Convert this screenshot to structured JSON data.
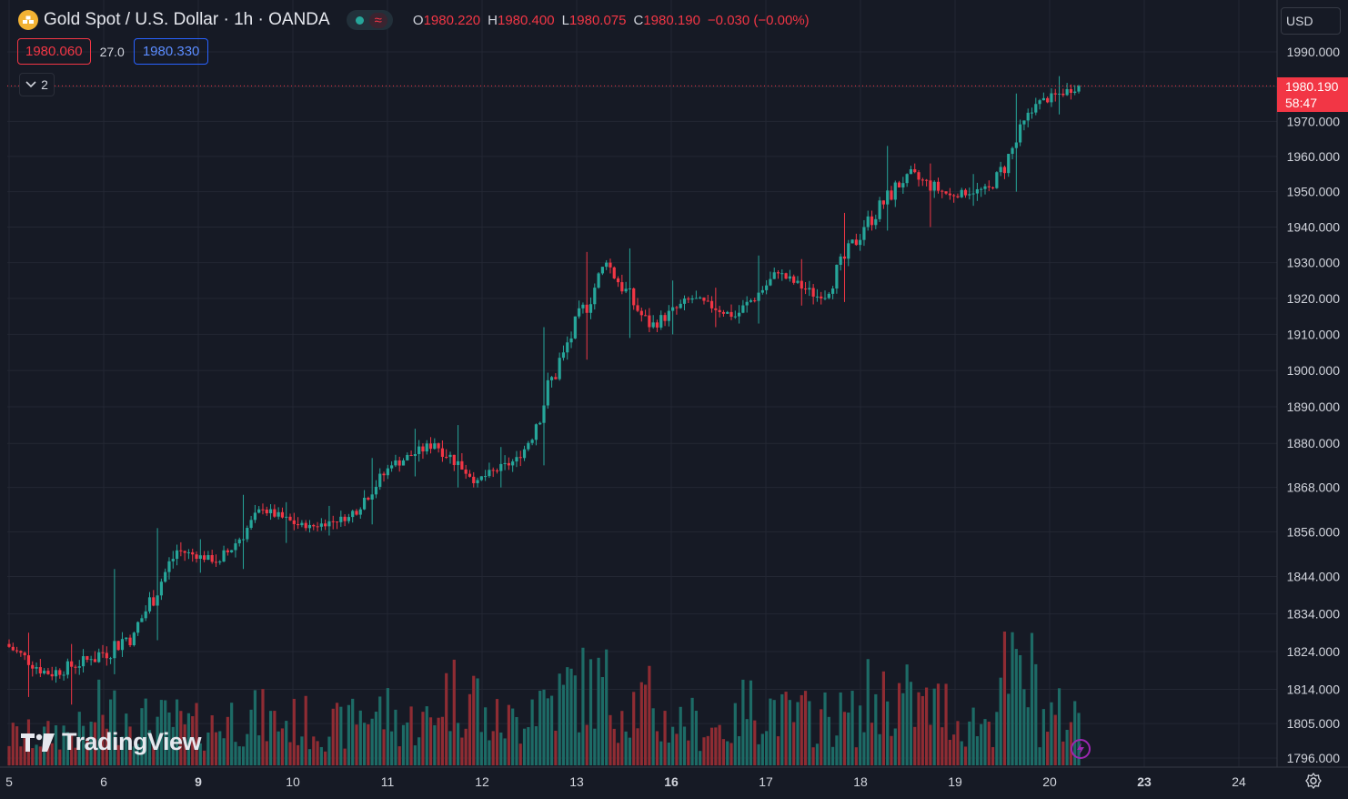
{
  "header": {
    "symbol_title": "Gold Spot / U.S. Dollar · 1h · OANDA",
    "market_icon": "gold-bars-icon",
    "status_symbol": "≈",
    "ohlc": {
      "o_label": "O",
      "o": "1980.220",
      "h_label": "H",
      "h": "1980.400",
      "l_label": "L",
      "l": "1980.075",
      "c_label": "C",
      "c": "1980.190",
      "change": "−0.030 (−0.00%)"
    }
  },
  "trade": {
    "sell_price": "1980.060",
    "spread": "27.0",
    "buy_price": "1980.330"
  },
  "indicators_toggle": {
    "count": "2",
    "icon": "chevron-down-icon"
  },
  "currency": "USD",
  "last_price_tag": {
    "price": "1980.190",
    "countdown": "58:47"
  },
  "watermark": "TradingView",
  "colors": {
    "up": "#26a69a",
    "down": "#f23645",
    "background": "#161a25",
    "grid": "#232733",
    "volume_up": "#1d6b66",
    "volume_down": "#8f2c33"
  },
  "chart_data": {
    "type": "candlestick",
    "price_axis": {
      "ticks": [
        1990,
        1980,
        1970,
        1960,
        1950,
        1940,
        1930,
        1920,
        1910,
        1900,
        1890,
        1880,
        1868,
        1856,
        1844,
        1834,
        1824,
        1814,
        1805,
        1796
      ],
      "tick_labels": [
        "1990.000",
        "1980.000",
        "1970.000",
        "1960.000",
        "1950.000",
        "1940.000",
        "1930.000",
        "1920.000",
        "1910.000",
        "1900.000",
        "1890.000",
        "1880.000",
        "1868.000",
        "1856.000",
        "1844.000",
        "1834.000",
        "1824.000",
        "1814.000",
        "1805.000",
        "1796.000"
      ],
      "scale": "log",
      "ylim": [
        1794,
        1994
      ]
    },
    "time_axis": {
      "labels": [
        "5",
        "6",
        "9",
        "10",
        "11",
        "12",
        "13",
        "16",
        "17",
        "18",
        "19",
        "20",
        "23",
        "24"
      ],
      "bold": [
        "9",
        "16",
        "23"
      ]
    },
    "last_price": 1980.19,
    "grid": true,
    "days": [
      {
        "label": "5",
        "open": 1826,
        "close": 1818,
        "high": 1829,
        "low": 1812,
        "vol": 0.3
      },
      {
        "label": "6",
        "open": 1818,
        "close": 1822,
        "high": 1826,
        "low": 1810,
        "vol": 0.35
      },
      {
        "label": "6",
        "open": 1822,
        "close": 1829,
        "high": 1846,
        "low": 1818,
        "vol": 0.55
      },
      {
        "label": "9",
        "open": 1829,
        "close": 1851,
        "high": 1857,
        "low": 1827,
        "vol": 0.45
      },
      {
        "label": "9",
        "open": 1851,
        "close": 1848,
        "high": 1854,
        "low": 1845,
        "vol": 0.4
      },
      {
        "label": "10",
        "open": 1848,
        "close": 1862,
        "high": 1866,
        "low": 1846,
        "vol": 0.5
      },
      {
        "label": "10",
        "open": 1862,
        "close": 1857,
        "high": 1864,
        "low": 1853,
        "vol": 0.45
      },
      {
        "label": "11",
        "open": 1857,
        "close": 1860,
        "high": 1863,
        "low": 1855,
        "vol": 0.4
      },
      {
        "label": "11",
        "open": 1860,
        "close": 1874,
        "high": 1876,
        "low": 1858,
        "vol": 0.55
      },
      {
        "label": "12",
        "open": 1874,
        "close": 1880,
        "high": 1884,
        "low": 1871,
        "vol": 0.45
      },
      {
        "label": "12",
        "open": 1880,
        "close": 1870,
        "high": 1885,
        "low": 1868,
        "vol": 0.75
      },
      {
        "label": "13",
        "open": 1870,
        "close": 1876,
        "high": 1879,
        "low": 1868,
        "vol": 0.45
      },
      {
        "label": "13",
        "open": 1876,
        "close": 1905,
        "high": 1912,
        "low": 1874,
        "vol": 0.7
      },
      {
        "label": "16",
        "open": 1905,
        "close": 1930,
        "high": 1933,
        "low": 1903,
        "vol": 0.8
      },
      {
        "label": "16",
        "open": 1930,
        "close": 1912,
        "high": 1934,
        "low": 1909,
        "vol": 0.65
      },
      {
        "label": "17",
        "open": 1912,
        "close": 1920,
        "high": 1925,
        "low": 1910,
        "vol": 0.45
      },
      {
        "label": "17",
        "open": 1920,
        "close": 1915,
        "high": 1923,
        "low": 1912,
        "vol": 0.4
      },
      {
        "label": "18",
        "open": 1915,
        "close": 1927,
        "high": 1932,
        "low": 1913,
        "vol": 0.6
      },
      {
        "label": "18",
        "open": 1927,
        "close": 1920,
        "high": 1931,
        "low": 1918,
        "vol": 0.5
      },
      {
        "label": "18",
        "open": 1920,
        "close": 1940,
        "high": 1944,
        "low": 1919,
        "vol": 0.5
      },
      {
        "label": "19",
        "open": 1940,
        "close": 1955,
        "high": 1963,
        "low": 1939,
        "vol": 0.7
      },
      {
        "label": "19",
        "open": 1955,
        "close": 1949,
        "high": 1958,
        "low": 1940,
        "vol": 0.6
      },
      {
        "label": "19",
        "open": 1949,
        "close": 1951,
        "high": 1955,
        "low": 1946,
        "vol": 0.45
      },
      {
        "label": "20",
        "open": 1951,
        "close": 1975,
        "high": 1978,
        "low": 1950,
        "vol": 0.9
      },
      {
        "label": "20",
        "open": 1975,
        "close": 1980.19,
        "high": 1983,
        "low": 1972,
        "vol": 0.5
      }
    ]
  }
}
